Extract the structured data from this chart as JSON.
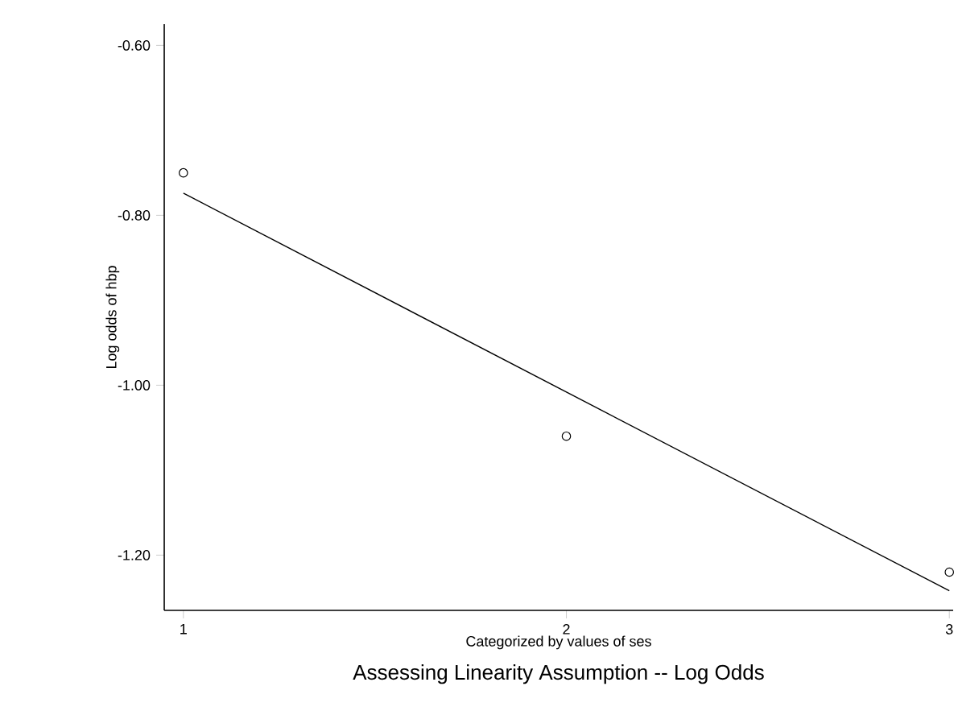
{
  "chart_data": {
    "type": "scatter",
    "title": "Assessing Linearity Assumption -- Log Odds",
    "xlabel": "Categorized by values of ses",
    "ylabel": "Log odds of hbp",
    "xlim": [
      0.95,
      3.01
    ],
    "xticks": [
      1,
      2,
      3
    ],
    "ylim": [
      -1.265,
      -0.575
    ],
    "yticks": [
      {
        "value": -0.6,
        "label": "-0.60"
      },
      {
        "value": -0.8,
        "label": "-0.80"
      },
      {
        "value": -1.0,
        "label": "-1.00"
      },
      {
        "value": -1.2,
        "label": "-1.20"
      }
    ],
    "marker": "circle",
    "series": [
      {
        "color": "#000000",
        "x": [
          1,
          2,
          3
        ],
        "values": [
          -0.75,
          -1.06,
          -1.22
        ]
      },
      {
        "type": "line",
        "color": "#000000",
        "x": [
          1,
          3
        ],
        "values": [
          -0.774,
          -1.242
        ],
        "marker": "none",
        "line_style": "solid"
      }
    ]
  }
}
